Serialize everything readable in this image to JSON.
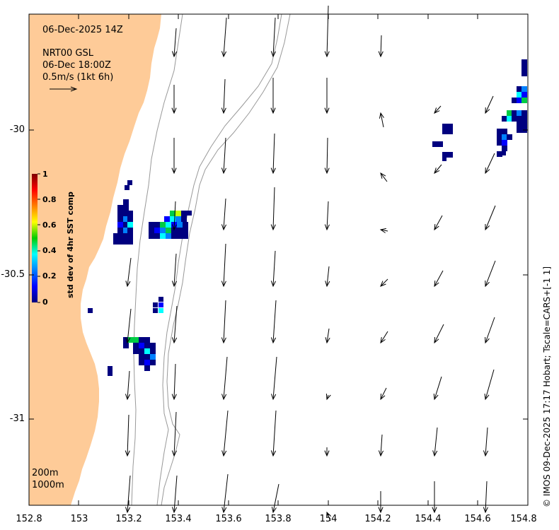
{
  "header": {
    "timestamp": "06-Dec-2025 14Z",
    "product": "NRT00 GSL",
    "current_time": "06-Dec 18:00Z",
    "scale_label": "0.5m/s (1kt 6h)"
  },
  "colorbar": {
    "title": "std dev of 4hr SST comp",
    "ticks": [
      "1",
      "0.8",
      "0.6",
      "0.4",
      "0.2",
      "0"
    ]
  },
  "axes": {
    "x_ticks": [
      "152.8",
      "153",
      "153.2",
      "153.4",
      "153.6",
      "153.8",
      "154",
      "154.2",
      "154.4",
      "154.6",
      "154.8"
    ],
    "y_ticks": [
      "-30",
      "-30.5",
      "-31"
    ]
  },
  "bathymetry_labels": [
    "200m",
    "1000m"
  ],
  "credit": "© IMOS 09-Dec-2025 17:17 Hobart; Tscale=CARS+[-1 1]",
  "colors": {
    "land": "#fecb98",
    "sea": "#ffffff",
    "contour": "#999999"
  }
}
